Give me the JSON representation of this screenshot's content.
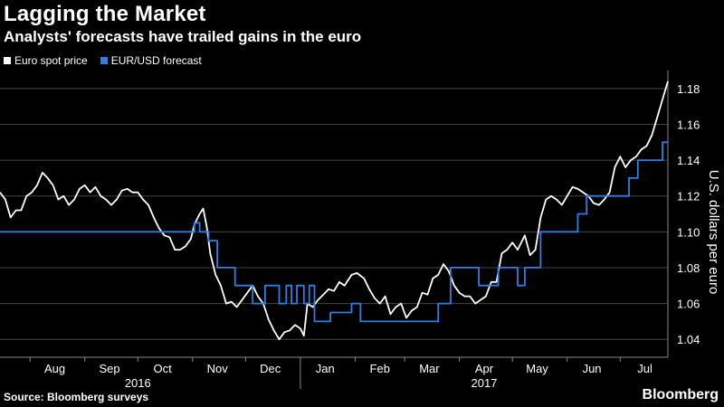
{
  "title": "Lagging the Market",
  "subtitle": "Analysts' forecasts have trailed gains in the euro",
  "legend": {
    "spot_label": "Euro spot price",
    "forecast_label": "EUR/USD forecast"
  },
  "source": "Source: Bloomberg surveys",
  "brand": "Bloomberg",
  "colors": {
    "background": "#000000",
    "spot": "#ffffff",
    "forecast": "#2f7fe0",
    "grid": "#444444"
  },
  "chart_data": {
    "type": "line",
    "ylabel": "U.S. dollars per euro",
    "ylim": [
      1.03,
      1.19
    ],
    "y_ticks": [
      1.04,
      1.06,
      1.08,
      1.1,
      1.12,
      1.14,
      1.16,
      1.18
    ],
    "y_tick_labels": [
      "1.04",
      "1.06",
      "1.08",
      "1.10",
      "1.12",
      "1.14",
      "1.16",
      "1.18"
    ],
    "y_axis_position": "right",
    "grid": true,
    "legend_placement": "top-left",
    "x_start": "2016-07-15",
    "x_end": "2017-07-28",
    "month_labels": [
      {
        "label": "Aug",
        "date": "2016-08-15"
      },
      {
        "label": "Sep",
        "date": "2016-09-15"
      },
      {
        "label": "Oct",
        "date": "2016-10-15"
      },
      {
        "label": "Nov",
        "date": "2016-11-15"
      },
      {
        "label": "Dec",
        "date": "2016-12-15"
      },
      {
        "label": "Jan",
        "date": "2017-01-15"
      },
      {
        "label": "Feb",
        "date": "2017-02-15"
      },
      {
        "label": "Mar",
        "date": "2017-03-15"
      },
      {
        "label": "Apr",
        "date": "2017-04-15"
      },
      {
        "label": "May",
        "date": "2017-05-15"
      },
      {
        "label": "Jun",
        "date": "2017-06-15"
      },
      {
        "label": "Jul",
        "date": "2017-07-15"
      }
    ],
    "month_ticks": [
      "2016-08-01",
      "2016-09-01",
      "2016-10-01",
      "2016-11-01",
      "2016-12-01",
      "2017-01-01",
      "2017-02-01",
      "2017-03-01",
      "2017-04-01",
      "2017-05-01",
      "2017-06-01",
      "2017-07-01"
    ],
    "year_labels": [
      {
        "label": "2016",
        "date": "2016-10-01"
      },
      {
        "label": "2017",
        "date": "2017-04-15"
      }
    ],
    "year_divider": "2017-01-01",
    "series": [
      {
        "name": "Euro spot price",
        "color": "#ffffff",
        "points": [
          [
            "2016-07-15",
            1.122
          ],
          [
            "2016-07-18",
            1.118
          ],
          [
            "2016-07-21",
            1.108
          ],
          [
            "2016-07-24",
            1.112
          ],
          [
            "2016-07-27",
            1.112
          ],
          [
            "2016-07-30",
            1.12
          ],
          [
            "2016-08-02",
            1.122
          ],
          [
            "2016-08-05",
            1.126
          ],
          [
            "2016-08-08",
            1.133
          ],
          [
            "2016-08-11",
            1.13
          ],
          [
            "2016-08-14",
            1.126
          ],
          [
            "2016-08-17",
            1.118
          ],
          [
            "2016-08-20",
            1.12
          ],
          [
            "2016-08-23",
            1.115
          ],
          [
            "2016-08-26",
            1.118
          ],
          [
            "2016-08-29",
            1.124
          ],
          [
            "2016-09-01",
            1.126
          ],
          [
            "2016-09-04",
            1.122
          ],
          [
            "2016-09-07",
            1.125
          ],
          [
            "2016-09-10",
            1.12
          ],
          [
            "2016-09-13",
            1.118
          ],
          [
            "2016-09-16",
            1.115
          ],
          [
            "2016-09-19",
            1.118
          ],
          [
            "2016-09-22",
            1.123
          ],
          [
            "2016-09-25",
            1.124
          ],
          [
            "2016-09-28",
            1.122
          ],
          [
            "2016-10-01",
            1.122
          ],
          [
            "2016-10-04",
            1.118
          ],
          [
            "2016-10-07",
            1.115
          ],
          [
            "2016-10-10",
            1.108
          ],
          [
            "2016-10-13",
            1.102
          ],
          [
            "2016-10-16",
            1.098
          ],
          [
            "2016-10-19",
            1.097
          ],
          [
            "2016-10-22",
            1.09
          ],
          [
            "2016-10-25",
            1.09
          ],
          [
            "2016-10-28",
            1.092
          ],
          [
            "2016-10-31",
            1.096
          ],
          [
            "2016-11-02",
            1.104
          ],
          [
            "2016-11-05",
            1.11
          ],
          [
            "2016-11-07",
            1.113
          ],
          [
            "2016-11-09",
            1.103
          ],
          [
            "2016-11-11",
            1.088
          ],
          [
            "2016-11-14",
            1.076
          ],
          [
            "2016-11-17",
            1.07
          ],
          [
            "2016-11-20",
            1.06
          ],
          [
            "2016-11-23",
            1.061
          ],
          [
            "2016-11-26",
            1.058
          ],
          [
            "2016-11-29",
            1.062
          ],
          [
            "2016-12-02",
            1.066
          ],
          [
            "2016-12-05",
            1.07
          ],
          [
            "2016-12-08",
            1.064
          ],
          [
            "2016-12-11",
            1.06
          ],
          [
            "2016-12-14",
            1.051
          ],
          [
            "2016-12-17",
            1.045
          ],
          [
            "2016-12-20",
            1.04
          ],
          [
            "2016-12-23",
            1.044
          ],
          [
            "2016-12-26",
            1.045
          ],
          [
            "2016-12-29",
            1.048
          ],
          [
            "2017-01-01",
            1.046
          ],
          [
            "2017-01-03",
            1.042
          ],
          [
            "2017-01-05",
            1.06
          ],
          [
            "2017-01-08",
            1.058
          ],
          [
            "2017-01-11",
            1.062
          ],
          [
            "2017-01-14",
            1.065
          ],
          [
            "2017-01-17",
            1.068
          ],
          [
            "2017-01-20",
            1.067
          ],
          [
            "2017-01-23",
            1.072
          ],
          [
            "2017-01-26",
            1.07
          ],
          [
            "2017-01-30",
            1.076
          ],
          [
            "2017-02-02",
            1.077
          ],
          [
            "2017-02-06",
            1.074
          ],
          [
            "2017-02-09",
            1.068
          ],
          [
            "2017-02-12",
            1.063
          ],
          [
            "2017-02-15",
            1.06
          ],
          [
            "2017-02-18",
            1.064
          ],
          [
            "2017-02-21",
            1.054
          ],
          [
            "2017-02-24",
            1.058
          ],
          [
            "2017-02-27",
            1.06
          ],
          [
            "2017-03-02",
            1.052
          ],
          [
            "2017-03-05",
            1.056
          ],
          [
            "2017-03-08",
            1.058
          ],
          [
            "2017-03-11",
            1.066
          ],
          [
            "2017-03-14",
            1.065
          ],
          [
            "2017-03-17",
            1.074
          ],
          [
            "2017-03-20",
            1.076
          ],
          [
            "2017-03-23",
            1.082
          ],
          [
            "2017-03-26",
            1.078
          ],
          [
            "2017-03-29",
            1.07
          ],
          [
            "2017-04-01",
            1.066
          ],
          [
            "2017-04-04",
            1.064
          ],
          [
            "2017-04-07",
            1.064
          ],
          [
            "2017-04-10",
            1.06
          ],
          [
            "2017-04-13",
            1.062
          ],
          [
            "2017-04-16",
            1.064
          ],
          [
            "2017-04-19",
            1.072
          ],
          [
            "2017-04-22",
            1.072
          ],
          [
            "2017-04-25",
            1.088
          ],
          [
            "2017-04-28",
            1.09
          ],
          [
            "2017-05-01",
            1.094
          ],
          [
            "2017-05-04",
            1.09
          ],
          [
            "2017-05-08",
            1.098
          ],
          [
            "2017-05-11",
            1.087
          ],
          [
            "2017-05-14",
            1.09
          ],
          [
            "2017-05-17",
            1.108
          ],
          [
            "2017-05-20",
            1.118
          ],
          [
            "2017-05-23",
            1.12
          ],
          [
            "2017-05-26",
            1.118
          ],
          [
            "2017-05-29",
            1.115
          ],
          [
            "2017-06-01",
            1.12
          ],
          [
            "2017-06-04",
            1.125
          ],
          [
            "2017-06-07",
            1.124
          ],
          [
            "2017-06-10",
            1.122
          ],
          [
            "2017-06-13",
            1.12
          ],
          [
            "2017-06-16",
            1.116
          ],
          [
            "2017-06-19",
            1.115
          ],
          [
            "2017-06-22",
            1.118
          ],
          [
            "2017-06-25",
            1.122
          ],
          [
            "2017-06-28",
            1.136
          ],
          [
            "2017-07-01",
            1.142
          ],
          [
            "2017-07-04",
            1.136
          ],
          [
            "2017-07-07",
            1.14
          ],
          [
            "2017-07-10",
            1.142
          ],
          [
            "2017-07-13",
            1.146
          ],
          [
            "2017-07-16",
            1.148
          ],
          [
            "2017-07-19",
            1.154
          ],
          [
            "2017-07-22",
            1.164
          ],
          [
            "2017-07-25",
            1.174
          ],
          [
            "2017-07-28",
            1.184
          ]
        ]
      },
      {
        "name": "EUR/USD forecast",
        "color": "#2f7fe0",
        "points": [
          [
            "2016-07-15",
            1.1
          ],
          [
            "2016-11-01",
            1.1
          ],
          [
            "2016-11-02",
            1.105
          ],
          [
            "2016-11-04",
            1.105
          ],
          [
            "2016-11-05",
            1.1
          ],
          [
            "2016-11-09",
            1.1
          ],
          [
            "2016-11-10",
            1.095
          ],
          [
            "2016-11-15",
            1.08
          ],
          [
            "2016-11-20",
            1.08
          ],
          [
            "2016-11-25",
            1.07
          ],
          [
            "2016-12-02",
            1.07
          ],
          [
            "2016-12-05",
            1.06
          ],
          [
            "2016-12-09",
            1.06
          ],
          [
            "2016-12-12",
            1.07
          ],
          [
            "2016-12-20",
            1.06
          ],
          [
            "2016-12-24",
            1.07
          ],
          [
            "2016-12-27",
            1.06
          ],
          [
            "2016-12-30",
            1.07
          ],
          [
            "2017-01-03",
            1.06
          ],
          [
            "2017-01-06",
            1.07
          ],
          [
            "2017-01-09",
            1.05
          ],
          [
            "2017-01-16",
            1.05
          ],
          [
            "2017-01-18",
            1.055
          ],
          [
            "2017-01-30",
            1.06
          ],
          [
            "2017-02-04",
            1.05
          ],
          [
            "2017-03-19",
            1.05
          ],
          [
            "2017-03-20",
            1.06
          ],
          [
            "2017-03-24",
            1.06
          ],
          [
            "2017-03-27",
            1.08
          ],
          [
            "2017-04-09",
            1.08
          ],
          [
            "2017-04-12",
            1.07
          ],
          [
            "2017-04-20",
            1.07
          ],
          [
            "2017-04-23",
            1.08
          ],
          [
            "2017-04-30",
            1.08
          ],
          [
            "2017-05-04",
            1.07
          ],
          [
            "2017-05-08",
            1.08
          ],
          [
            "2017-05-13",
            1.08
          ],
          [
            "2017-05-17",
            1.1
          ],
          [
            "2017-06-04",
            1.1
          ],
          [
            "2017-06-07",
            1.11
          ],
          [
            "2017-06-12",
            1.12
          ],
          [
            "2017-06-30",
            1.12
          ],
          [
            "2017-07-06",
            1.13
          ],
          [
            "2017-07-11",
            1.14
          ],
          [
            "2017-07-22",
            1.14
          ],
          [
            "2017-07-25",
            1.15
          ],
          [
            "2017-07-28",
            1.15
          ]
        ]
      }
    ]
  }
}
